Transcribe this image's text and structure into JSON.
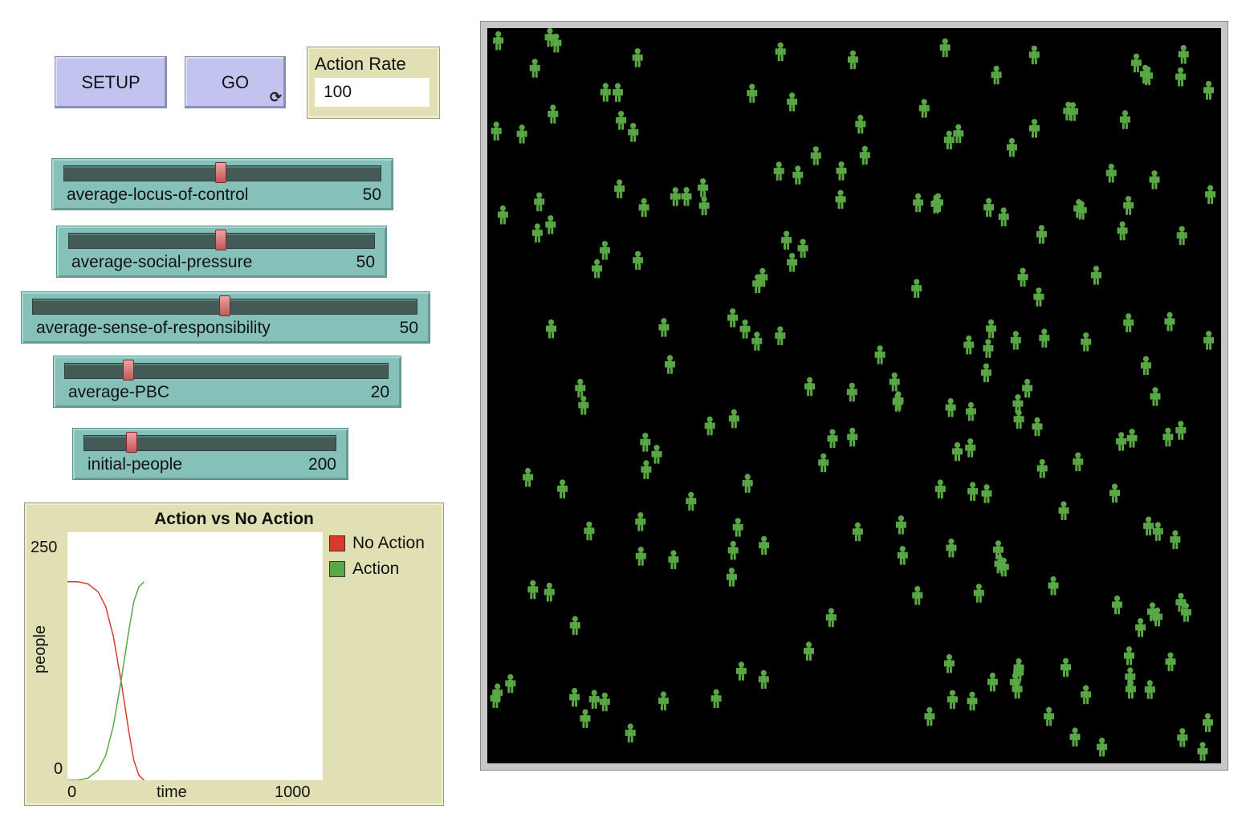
{
  "buttons": {
    "setup": {
      "label": "SETUP"
    },
    "go": {
      "label": "GO",
      "forever_icon": "forever-arrows-icon"
    }
  },
  "monitor": {
    "label": "Action Rate",
    "value": "100"
  },
  "sliders": [
    {
      "name": "average-locus-of-control",
      "value": "50",
      "fraction": 0.5
    },
    {
      "name": "average-social-pressure",
      "value": "50",
      "fraction": 0.5
    },
    {
      "name": "average-sense-of-responsibility",
      "value": "50",
      "fraction": 0.5
    },
    {
      "name": "average-PBC",
      "value": "20",
      "fraction": 0.2
    },
    {
      "name": "initial-people",
      "value": "200",
      "fraction": 0.16
    }
  ],
  "plot": {
    "title": "Action vs No Action",
    "y_axis_label": "people",
    "x_axis_label": "time",
    "y_min": "0",
    "y_max": "250",
    "x_min": "0",
    "x_max": "1000",
    "legend": [
      {
        "label": "No Action",
        "color": "#d83a2f"
      },
      {
        "label": "Action",
        "color": "#5aa845"
      }
    ]
  },
  "chart_data": {
    "type": "line",
    "title": "Action vs No Action",
    "xlabel": "time",
    "ylabel": "people",
    "xlim": [
      0,
      1000
    ],
    "ylim": [
      0,
      250
    ],
    "legend_position": "right",
    "x": [
      0,
      40,
      80,
      120,
      150,
      180,
      210,
      240,
      260,
      280,
      300
    ],
    "series": [
      {
        "name": "No Action",
        "color": "#d83a2f",
        "values": [
          200,
          200,
          198,
          190,
          175,
          145,
          100,
          50,
          20,
          5,
          0
        ]
      },
      {
        "name": "Action",
        "color": "#5aa845",
        "values": [
          0,
          0,
          2,
          10,
          25,
          55,
          100,
          150,
          180,
          195,
          200
        ]
      }
    ]
  },
  "world": {
    "agent_color": "#5aa845",
    "background": "#000000",
    "agent_count": 200
  }
}
